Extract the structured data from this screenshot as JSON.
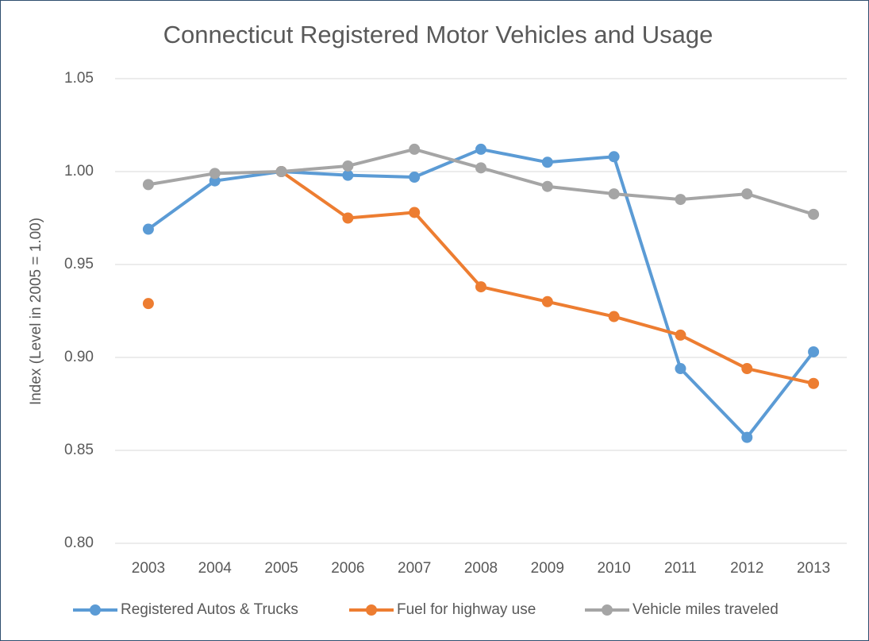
{
  "chart_data": {
    "type": "line",
    "title": "Connecticut Registered Motor Vehicles and Usage",
    "y_label": "Index (Level in 2005 = 1.00)",
    "categories": [
      "2003",
      "2004",
      "2005",
      "2006",
      "2007",
      "2008",
      "2009",
      "2010",
      "2011",
      "2012",
      "2013"
    ],
    "series": [
      {
        "name": "Registered Autos & Trucks",
        "color": "#5b9bd5",
        "values": [
          0.969,
          0.995,
          1.0,
          0.998,
          0.997,
          1.012,
          1.005,
          1.008,
          0.894,
          0.857,
          0.903
        ]
      },
      {
        "name": "Fuel for highway use",
        "color": "#ed7d31",
        "values": [
          0.929,
          null,
          1.0,
          0.975,
          0.978,
          0.938,
          0.93,
          0.922,
          0.912,
          0.894,
          0.886
        ]
      },
      {
        "name": "Vehicle miles traveled",
        "color": "#a5a5a5",
        "values": [
          0.993,
          0.999,
          1.0,
          1.003,
          1.012,
          1.002,
          0.992,
          0.988,
          0.985,
          0.988,
          0.977
        ]
      }
    ],
    "ylim": [
      0.8,
      1.05
    ],
    "yticks": [
      {
        "value": 0.8,
        "label": "0.80"
      },
      {
        "value": 0.85,
        "label": "0.85"
      },
      {
        "value": 0.9,
        "label": "0.90"
      },
      {
        "value": 0.95,
        "label": "0.95"
      },
      {
        "value": 1.0,
        "label": "1.00"
      },
      {
        "value": 1.05,
        "label": "1.05"
      }
    ],
    "grid": true,
    "legend": "bottom"
  }
}
